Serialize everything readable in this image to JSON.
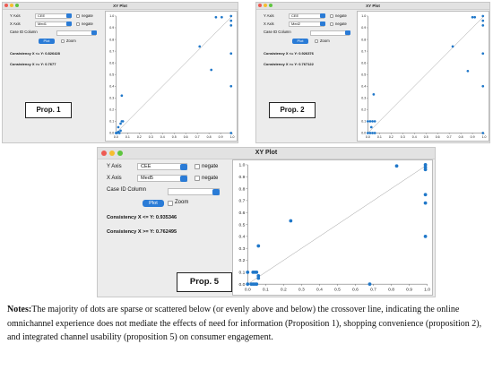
{
  "windows": [
    {
      "title": "XY Plot",
      "y_axis_label": "Y Axis",
      "y_axis_value": "CEE",
      "x_axis_label": "X Axis",
      "x_axis_value": "Med1",
      "negate_label": "negate",
      "case_id_label": "Case ID Column",
      "plot_button": "Plot",
      "zoom_label": "Zoom",
      "consistency_1": "Consistency X <= Y: 0.826428",
      "consistency_2": "Consistency X >= Y: 0.7677",
      "prop_label": "Prop. 1",
      "chart_data": {
        "type": "scatter",
        "xlim": [
          0,
          1
        ],
        "ylim": [
          0,
          1
        ],
        "x_ticks": [
          "0.0",
          "0.1",
          "0.2",
          "0.3",
          "0.4",
          "0.5",
          "0.6",
          "0.7",
          "0.8",
          "0.9",
          "1.0"
        ],
        "y_ticks": [
          "0.0",
          "0.1",
          "0.2",
          "0.3",
          "0.4",
          "0.5",
          "0.6",
          "0.7",
          "0.8",
          "0.9",
          "1.0"
        ],
        "points": [
          [
            0,
            0
          ],
          [
            0.01,
            0
          ],
          [
            0.02,
            0.01
          ],
          [
            0.03,
            0
          ],
          [
            0.04,
            0.02
          ],
          [
            0.02,
            0.05
          ],
          [
            0.04,
            0.08
          ],
          [
            0.05,
            0.1
          ],
          [
            0.06,
            0.1
          ],
          [
            0.05,
            0.32
          ],
          [
            0.72,
            0.74
          ],
          [
            0.82,
            0.54
          ],
          [
            0.86,
            0.99
          ],
          [
            0.91,
            0.99
          ],
          [
            0.99,
            1.0
          ],
          [
            0.99,
            0.96
          ],
          [
            0.99,
            0.92
          ],
          [
            0.99,
            0.68
          ],
          [
            0.99,
            0.4
          ],
          [
            0.99,
            0
          ]
        ],
        "diagonal": true
      }
    },
    {
      "title": "XY Plot",
      "y_axis_label": "Y Axis",
      "y_axis_value": "CEE",
      "x_axis_label": "X Axis",
      "x_axis_value": "Med2",
      "negate_label": "negate",
      "case_id_label": "Case ID Column",
      "plot_button": "Plot",
      "zoom_label": "Zoom",
      "consistency_1": "Consistency X <= Y: 0.926376",
      "consistency_2": "Consistency X >= Y: 0.767122",
      "prop_label": "Prop. 2",
      "chart_data": {
        "type": "scatter",
        "xlim": [
          0,
          1
        ],
        "ylim": [
          0,
          1
        ],
        "x_ticks": [
          "0.0",
          "0.1",
          "0.2",
          "0.3",
          "0.4",
          "0.5",
          "0.6",
          "0.7",
          "0.8",
          "0.9",
          "1.0"
        ],
        "y_ticks": [
          "0.0",
          "0.1",
          "0.2",
          "0.3",
          "0.4",
          "0.5",
          "0.6",
          "0.7",
          "0.8",
          "0.9",
          "1.0"
        ],
        "points": [
          [
            0,
            0.1
          ],
          [
            0.02,
            0.1
          ],
          [
            0.04,
            0.1
          ],
          [
            0.06,
            0.1
          ],
          [
            0.03,
            0.05
          ],
          [
            0,
            0
          ],
          [
            0.02,
            0
          ],
          [
            0.04,
            0
          ],
          [
            0.06,
            0
          ],
          [
            0.05,
            0.33
          ],
          [
            0.73,
            0.74
          ],
          [
            0.86,
            0.53
          ],
          [
            0.9,
            0.99
          ],
          [
            0.92,
            0.99
          ],
          [
            0.99,
            1.0
          ],
          [
            0.99,
            0.96
          ],
          [
            0.99,
            0.92
          ],
          [
            0.99,
            0.68
          ],
          [
            0.99,
            0.4
          ],
          [
            0.99,
            0
          ]
        ],
        "diagonal": true
      }
    },
    {
      "title": "XY Plot",
      "y_axis_label": "Y Axis",
      "y_axis_value": "CEE",
      "x_axis_label": "X Axis",
      "x_axis_value": "Med5",
      "negate_label": "negate",
      "case_id_label": "Case ID Column",
      "plot_button": "Plot",
      "zoom_label": "Zoom",
      "consistency_1": "Consistency X <= Y: 0.935346",
      "consistency_2": "Consistency X >= Y: 0.762495",
      "prop_label": "Prop. 5",
      "chart_data": {
        "type": "scatter",
        "xlim": [
          0,
          1
        ],
        "ylim": [
          0,
          1
        ],
        "x_ticks": [
          "0.0",
          "0.1",
          "0.2",
          "0.3",
          "0.4",
          "0.5",
          "0.6",
          "0.7",
          "0.8",
          "0.9",
          "1.0"
        ],
        "y_ticks": [
          "0.0",
          "0.1",
          "0.2",
          "0.3",
          "0.4",
          "0.5",
          "0.6",
          "0.7",
          "0.8",
          "0.9",
          "1.0"
        ],
        "points": [
          [
            0,
            0.1
          ],
          [
            0.03,
            0.1
          ],
          [
            0.04,
            0.1
          ],
          [
            0.05,
            0.1
          ],
          [
            0.06,
            0.07
          ],
          [
            0.06,
            0.05
          ],
          [
            0,
            0
          ],
          [
            0.02,
            0
          ],
          [
            0.03,
            0
          ],
          [
            0.04,
            0
          ],
          [
            0.05,
            0
          ],
          [
            0.06,
            0.32
          ],
          [
            0.24,
            0.53
          ],
          [
            0.68,
            0
          ],
          [
            0.83,
            0.99
          ],
          [
            0.99,
            1.0
          ],
          [
            0.99,
            0.98
          ],
          [
            0.99,
            0.96
          ],
          [
            0.99,
            0.75
          ],
          [
            0.99,
            0.68
          ],
          [
            0.99,
            0.4
          ]
        ],
        "diagonal": true
      }
    }
  ],
  "notes": {
    "label": "Notes:",
    "text": "The majority of dots are sparse or scattered below (or evenly above and below) the crossover line, indicating the online omnichannel experience does not mediate the effects of need for information (Proposition 1), shopping convenience (proposition 2), and integrated channel usability (proposition 5) on consumer engagement."
  },
  "colors": {
    "dot": "#1f77c9",
    "accent": "#2a7bd6",
    "close": "#ee5a52",
    "minimize": "#f5bd2f",
    "maximize": "#5ec53f"
  }
}
